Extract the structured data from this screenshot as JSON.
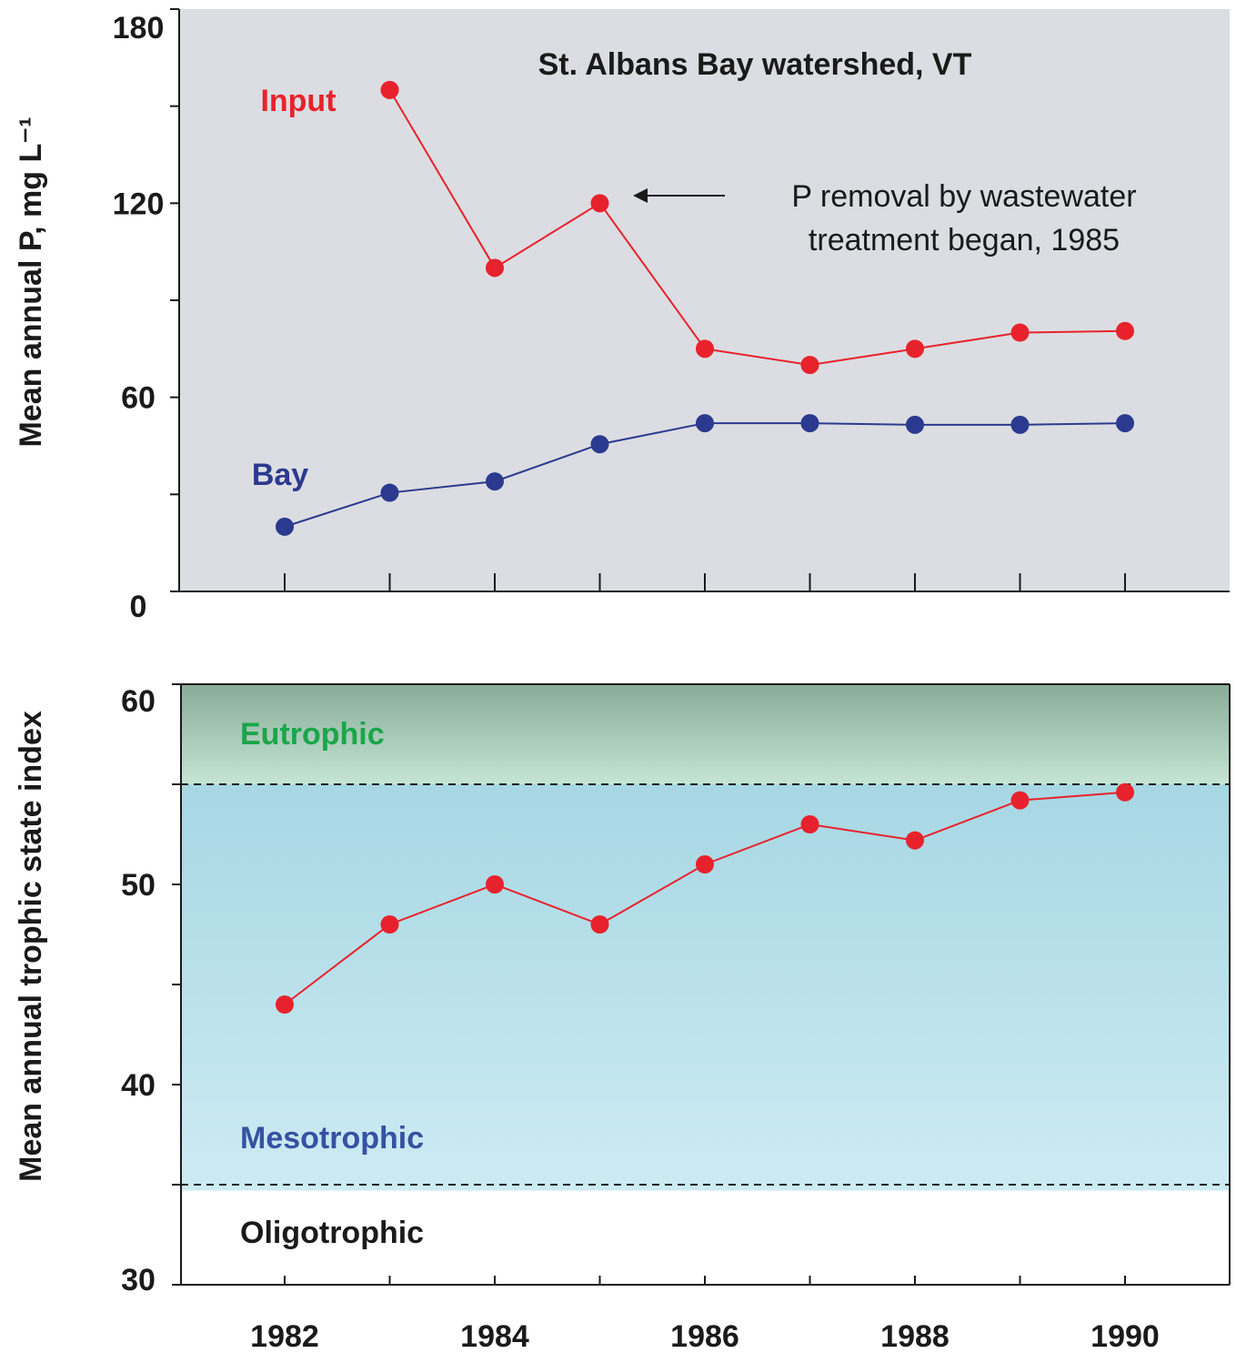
{
  "chart_data": [
    {
      "type": "line",
      "title": "St. Albans Bay watershed, VT",
      "xlabel": "",
      "ylabel": "Mean annual P, mg L⁻¹",
      "ylim": [
        0,
        180
      ],
      "yticks": [
        0,
        60,
        120,
        180
      ],
      "yticks_minor": [
        30,
        90,
        150
      ],
      "x": [
        1982,
        1983,
        1984,
        1985,
        1986,
        1987,
        1988,
        1989,
        1990
      ],
      "series": [
        {
          "name": "Input",
          "color": "#e8222c",
          "x": [
            1983,
            1984,
            1985,
            1986,
            1987,
            1988,
            1989,
            1990
          ],
          "values": [
            155,
            100,
            120,
            75,
            70,
            75,
            80,
            80.5
          ]
        },
        {
          "name": "Bay",
          "color": "#2b3a8f",
          "x": [
            1982,
            1983,
            1984,
            1985,
            1986,
            1987,
            1988,
            1989,
            1990
          ],
          "values": [
            20,
            30.5,
            34,
            45.5,
            52,
            52,
            51.5,
            51.5,
            52
          ]
        }
      ],
      "annotation": {
        "text_lines": [
          "P removal by wastewater",
          "treatment began, 1985"
        ],
        "points_to": {
          "x": 1985,
          "y": 120
        }
      },
      "background": "#dcdde2",
      "grid": false
    },
    {
      "type": "line",
      "xlabel": "",
      "ylabel": "Mean annual trophic state index",
      "ylim": [
        30,
        60
      ],
      "yticks": [
        30,
        40,
        50,
        60
      ],
      "yticks_minor": [
        35,
        45,
        55
      ],
      "xticks": [
        1982,
        1984,
        1986,
        1988,
        1990
      ],
      "series": [
        {
          "color": "#e8222c",
          "x": [
            1982,
            1983,
            1984,
            1985,
            1986,
            1987,
            1988,
            1989,
            1990
          ],
          "values": [
            44,
            48,
            50,
            48,
            51,
            53,
            52.2,
            54.2,
            54.6
          ]
        }
      ],
      "zones": [
        {
          "name": "Eutrophic",
          "from": 55,
          "to": 60,
          "color": "#1aa64a"
        },
        {
          "name": "Mesotrophic",
          "from": 35,
          "to": 55,
          "color": "#3552a3"
        },
        {
          "name": "Oligotrophic",
          "from": 30,
          "to": 35,
          "color": "#1a1a1a"
        }
      ],
      "thresholds": [
        55,
        35
      ],
      "grid": false
    }
  ]
}
